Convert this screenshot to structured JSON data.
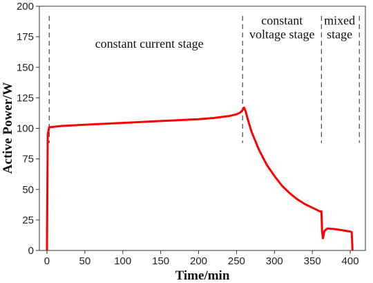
{
  "chart_data": {
    "type": "line",
    "xlabel": "Time/min",
    "ylabel": "Active Power/W",
    "xlim": [
      -10,
      420
    ],
    "ylim": [
      0,
      200
    ],
    "xticks": [
      0,
      50,
      100,
      150,
      200,
      250,
      300,
      350,
      400
    ],
    "yticks": [
      0,
      25,
      50,
      75,
      100,
      125,
      150,
      175,
      200
    ],
    "series_color": "#ff0000",
    "divider_color": "#444444",
    "series": [
      {
        "x": [
          0,
          1,
          3,
          5,
          20,
          50,
          100,
          150,
          200,
          220,
          240,
          250,
          255,
          258,
          260,
          262,
          265,
          270,
          280,
          290,
          300,
          310,
          320,
          330,
          340,
          350,
          360,
          362,
          363,
          364,
          366,
          370,
          380,
          390,
          400,
          402,
          403
        ],
        "y": [
          0,
          95,
          101,
          101,
          102,
          103,
          104.5,
          106,
          107.5,
          108.5,
          110,
          111.5,
          113,
          115,
          117,
          114,
          107,
          97,
          82,
          70,
          61,
          53,
          47,
          42,
          38,
          35,
          32,
          32,
          15,
          10,
          16,
          18,
          17.5,
          16.5,
          15.5,
          15,
          0
        ]
      }
    ],
    "stage_dividers_x": [
      3,
      258,
      362,
      412
    ],
    "annotations": [
      {
        "lines": [
          "constant current stage"
        ],
        "x": 135,
        "y": 166
      },
      {
        "lines": [
          "constant",
          "voltage stage"
        ],
        "x": 310,
        "y": 185
      },
      {
        "lines": [
          "mixed",
          "stage"
        ],
        "x": 386,
        "y": 185
      }
    ]
  }
}
